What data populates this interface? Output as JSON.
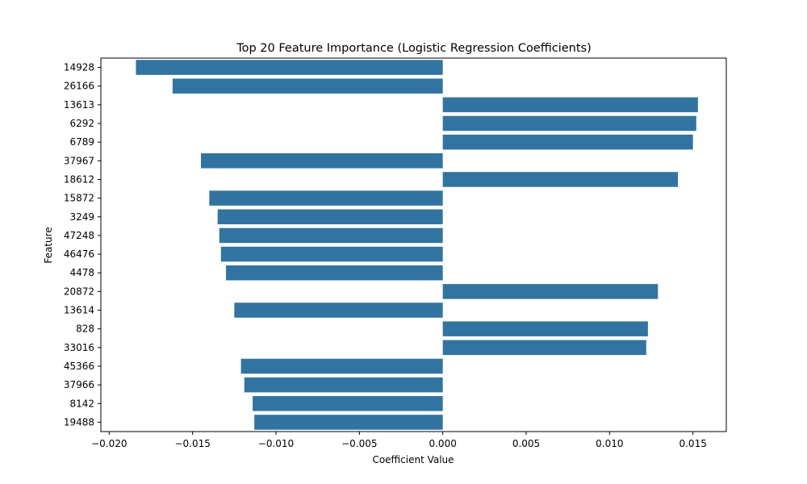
{
  "chart_data": {
    "type": "bar",
    "orientation": "horizontal",
    "title": "Top 20 Feature Importance (Logistic Regression Coefficients)",
    "xlabel": "Coefficient Value",
    "ylabel": "Feature",
    "xlim": [
      -0.0205,
      0.017
    ],
    "xticks": [
      -0.02,
      -0.015,
      -0.01,
      -0.005,
      0.0,
      0.005,
      0.01,
      0.015
    ],
    "xtick_labels": [
      "−0.020",
      "−0.015",
      "−0.010",
      "−0.005",
      "0.000",
      "0.005",
      "0.010",
      "0.015"
    ],
    "grid": false,
    "bar_color": "#3274a1",
    "categories": [
      "14928",
      "26166",
      "13613",
      "6292",
      "6789",
      "37967",
      "18612",
      "15872",
      "3249",
      "47248",
      "46476",
      "4478",
      "20872",
      "13614",
      "828",
      "33016",
      "45366",
      "37966",
      "8142",
      "19488"
    ],
    "values": [
      -0.0184,
      -0.0162,
      0.0153,
      0.0152,
      0.015,
      -0.0145,
      0.0141,
      -0.014,
      -0.0135,
      -0.0134,
      -0.0133,
      -0.013,
      0.0129,
      -0.0125,
      0.0123,
      0.0122,
      -0.0121,
      -0.0119,
      -0.0114,
      -0.0113
    ]
  }
}
